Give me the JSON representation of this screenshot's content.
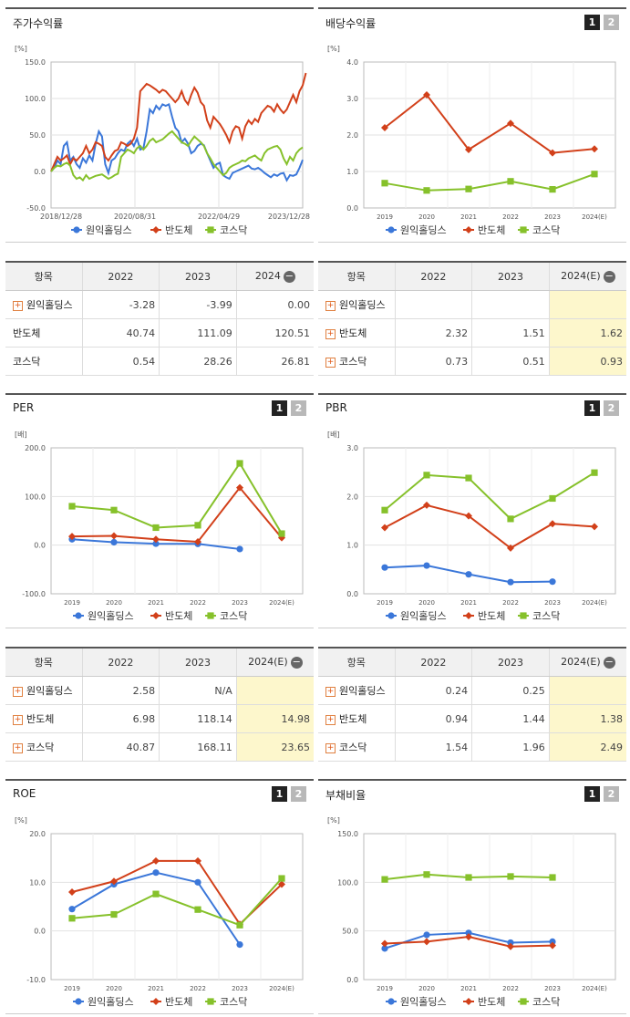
{
  "legend": {
    "s1": "원익홀딩스",
    "s2": "반도체",
    "s3": "코스닥",
    "colors": {
      "s1": "#3b77d9",
      "s2": "#d2401a",
      "s3": "#86c12b"
    }
  },
  "panels": {
    "stock": {
      "title": "주가수익률"
    },
    "dividend": {
      "title": "배당수익률",
      "tab1": "1",
      "tab2": "2"
    },
    "per": {
      "title": "PER",
      "tab1": "1",
      "tab2": "2"
    },
    "pbr": {
      "title": "PBR",
      "tab1": "1",
      "tab2": "2"
    },
    "roe": {
      "title": "ROE",
      "tab1": "1",
      "tab2": "2"
    },
    "debt": {
      "title": "부채비율",
      "tab1": "1",
      "tab2": "2"
    }
  },
  "tables": {
    "stock": {
      "headers": [
        "항목",
        "2022",
        "2023",
        "2024"
      ],
      "rows": [
        {
          "name": "원익홀딩스",
          "values": [
            "-3.28",
            "-3.99",
            "0.00"
          ]
        },
        {
          "name": "반도체",
          "values": [
            "40.74",
            "111.09",
            "120.51"
          ]
        },
        {
          "name": "코스닥",
          "values": [
            "0.54",
            "28.26",
            "26.81"
          ]
        }
      ]
    },
    "dividend": {
      "headers": [
        "항목",
        "2022",
        "2023",
        "2024(E)"
      ],
      "rows": [
        {
          "name": "원익홀딩스",
          "values": [
            "",
            "",
            ""
          ]
        },
        {
          "name": "반도체",
          "values": [
            "2.32",
            "1.51",
            "1.62"
          ]
        },
        {
          "name": "코스닥",
          "values": [
            "0.73",
            "0.51",
            "0.93"
          ]
        }
      ]
    },
    "per": {
      "headers": [
        "항목",
        "2022",
        "2023",
        "2024(E)"
      ],
      "rows": [
        {
          "name": "원익홀딩스",
          "values": [
            "2.58",
            "N/A",
            ""
          ]
        },
        {
          "name": "반도체",
          "values": [
            "6.98",
            "118.14",
            "14.98"
          ]
        },
        {
          "name": "코스닥",
          "values": [
            "40.87",
            "168.11",
            "23.65"
          ]
        }
      ]
    },
    "pbr": {
      "headers": [
        "항목",
        "2022",
        "2023",
        "2024(E)"
      ],
      "rows": [
        {
          "name": "원익홀딩스",
          "values": [
            "0.24",
            "0.25",
            ""
          ]
        },
        {
          "name": "반도체",
          "values": [
            "0.94",
            "1.44",
            "1.38"
          ]
        },
        {
          "name": "코스닥",
          "values": [
            "1.54",
            "1.96",
            "2.49"
          ]
        }
      ]
    }
  },
  "chart_data": [
    {
      "id": "stock",
      "type": "line",
      "unit": "[%]",
      "ylim": [
        -50,
        150
      ],
      "yticks": [
        "150.0",
        "100.0",
        "50.0",
        "0.0",
        "-50.0"
      ],
      "xticks": [
        "2018/12/28",
        "2020/08/31",
        "2022/04/29",
        "2023/12/28"
      ],
      "series": [
        {
          "name": "원익홀딩스",
          "values": [
            0,
            5,
            15,
            10,
            35,
            40,
            15,
            20,
            10,
            5,
            18,
            12,
            22,
            15,
            38,
            55,
            48,
            10,
            -2,
            15,
            18,
            25,
            30,
            28,
            38,
            42,
            35,
            45,
            30,
            32,
            55,
            85,
            80,
            90,
            85,
            92,
            90,
            92,
            75,
            60,
            55,
            40,
            45,
            38,
            25,
            28,
            35,
            38,
            36,
            25,
            15,
            5,
            10,
            12,
            -5,
            -8,
            -10,
            -2,
            0,
            2,
            4,
            6,
            8,
            4,
            3,
            5,
            2,
            -2,
            -5,
            -8,
            -4,
            -6,
            -3,
            -2,
            -12,
            -5,
            -6,
            -4,
            5,
            16
          ]
        },
        {
          "name": "반도체",
          "values": [
            0,
            10,
            20,
            15,
            18,
            22,
            10,
            18,
            15,
            20,
            25,
            35,
            25,
            30,
            40,
            38,
            35,
            20,
            15,
            22,
            28,
            30,
            40,
            38,
            35,
            38,
            45,
            60,
            110,
            115,
            120,
            118,
            115,
            112,
            108,
            112,
            110,
            105,
            100,
            95,
            100,
            110,
            98,
            92,
            105,
            115,
            108,
            95,
            90,
            70,
            60,
            75,
            70,
            65,
            58,
            50,
            40,
            55,
            62,
            60,
            45,
            62,
            70,
            65,
            72,
            68,
            80,
            85,
            90,
            88,
            82,
            92,
            85,
            80,
            85,
            95,
            105,
            95,
            110,
            118,
            135
          ]
        },
        {
          "name": "코스닥",
          "values": [
            0,
            5,
            8,
            7,
            10,
            12,
            8,
            -5,
            -10,
            -8,
            -12,
            -5,
            -10,
            -8,
            -6,
            -5,
            -4,
            -7,
            -10,
            -8,
            -5,
            -3,
            20,
            25,
            30,
            28,
            25,
            32,
            35,
            30,
            35,
            42,
            45,
            40,
            42,
            44,
            48,
            52,
            55,
            50,
            45,
            40,
            38,
            35,
            42,
            48,
            44,
            40,
            35,
            25,
            18,
            10,
            5,
            0,
            -5,
            -2,
            5,
            8,
            10,
            12,
            15,
            14,
            18,
            20,
            22,
            18,
            15,
            25,
            30,
            32,
            34,
            35,
            30,
            18,
            10,
            20,
            15,
            25,
            30,
            33
          ]
        }
      ]
    },
    {
      "id": "dividend",
      "type": "line",
      "unit": "[%]",
      "ylim": [
        0,
        4
      ],
      "yticks": [
        "4.0",
        "3.0",
        "2.0",
        "1.0",
        "0.0"
      ],
      "categories": [
        "2019",
        "2020",
        "2021",
        "2022",
        "2023",
        "2024(E)"
      ],
      "series": [
        {
          "name": "원익홀딩스",
          "values": [
            null,
            null,
            null,
            null,
            null,
            null
          ]
        },
        {
          "name": "반도체",
          "values": [
            2.2,
            3.1,
            1.6,
            2.32,
            1.51,
            1.62
          ]
        },
        {
          "name": "코스닥",
          "values": [
            0.68,
            0.48,
            0.52,
            0.73,
            0.51,
            0.93
          ]
        }
      ]
    },
    {
      "id": "per",
      "type": "line",
      "unit": "[배]",
      "ylim": [
        -100,
        200
      ],
      "yticks": [
        "200.0",
        "100.0",
        "0.0",
        "-100.0"
      ],
      "categories": [
        "2019",
        "2020",
        "2021",
        "2022",
        "2023",
        "2024(E)"
      ],
      "series": [
        {
          "name": "원익홀딩스",
          "values": [
            12,
            6,
            3,
            2.58,
            -8,
            null
          ]
        },
        {
          "name": "반도체",
          "values": [
            18,
            19,
            12,
            6.98,
            118.14,
            14.98
          ]
        },
        {
          "name": "코스닥",
          "values": [
            80,
            72,
            36,
            40.87,
            168.11,
            23.65
          ]
        }
      ]
    },
    {
      "id": "pbr",
      "type": "line",
      "unit": "[배]",
      "ylim": [
        0,
        3
      ],
      "yticks": [
        "3.0",
        "2.0",
        "1.0",
        "0.0"
      ],
      "categories": [
        "2019",
        "2020",
        "2021",
        "2022",
        "2023",
        "2024(E)"
      ],
      "series": [
        {
          "name": "원익홀딩스",
          "values": [
            0.54,
            0.58,
            0.4,
            0.24,
            0.25,
            null
          ]
        },
        {
          "name": "반도체",
          "values": [
            1.36,
            1.82,
            1.6,
            0.94,
            1.44,
            1.38
          ]
        },
        {
          "name": "코스닥",
          "values": [
            1.72,
            2.44,
            2.38,
            1.54,
            1.96,
            2.49
          ]
        }
      ]
    },
    {
      "id": "roe",
      "type": "line",
      "unit": "[%]",
      "ylim": [
        -10,
        20
      ],
      "yticks": [
        "20.0",
        "10.0",
        "0.0",
        "-10.0"
      ],
      "categories": [
        "2019",
        "2020",
        "2021",
        "2022",
        "2023",
        "2024(E)"
      ],
      "series": [
        {
          "name": "원익홀딩스",
          "values": [
            4.5,
            9.6,
            12,
            10,
            -2.8,
            null
          ]
        },
        {
          "name": "반도체",
          "values": [
            8,
            10.2,
            14.4,
            14.4,
            1.4,
            9.6
          ]
        },
        {
          "name": "코스닥",
          "values": [
            2.6,
            3.4,
            7.6,
            4.4,
            1.2,
            10.8
          ]
        }
      ]
    },
    {
      "id": "debt",
      "type": "line",
      "unit": "[%]",
      "ylim": [
        0,
        150
      ],
      "yticks": [
        "150.0",
        "100.0",
        "50.0",
        "0.0"
      ],
      "categories": [
        "2019",
        "2020",
        "2021",
        "2022",
        "2023",
        "2024(E)"
      ],
      "series": [
        {
          "name": "원익홀딩스",
          "values": [
            32,
            46,
            48,
            38,
            39,
            null
          ]
        },
        {
          "name": "반도체",
          "values": [
            37,
            39,
            44,
            34,
            35,
            null
          ]
        },
        {
          "name": "코스닥",
          "values": [
            103,
            108,
            105,
            106,
            105,
            null
          ]
        }
      ]
    }
  ]
}
